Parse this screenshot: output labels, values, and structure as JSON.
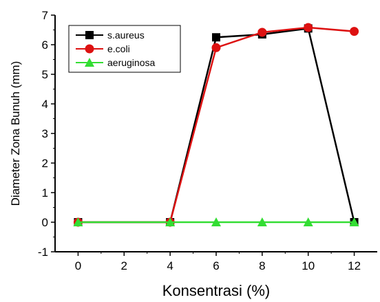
{
  "chart_data": {
    "type": "line",
    "xlabel": "Konsentrasi (%)",
    "ylabel": "Diameter Zona Bunuh (mm)",
    "xlim": [
      -1,
      13
    ],
    "ylim": [
      -1,
      7
    ],
    "xticks": [
      0,
      2,
      4,
      6,
      8,
      10,
      12
    ],
    "yticks": [
      -1,
      0,
      1,
      2,
      3,
      4,
      5,
      6,
      7
    ],
    "x": [
      0,
      4,
      6,
      8,
      10,
      12
    ],
    "grid": false,
    "legend_position": "top-left",
    "series": [
      {
        "name": "s.aureus",
        "color": "#000000",
        "marker": "square",
        "values": [
          0,
          0,
          6.25,
          6.35,
          6.55,
          0
        ]
      },
      {
        "name": "e.coli",
        "color": "#dd1111",
        "marker": "circle",
        "values": [
          0,
          0,
          5.9,
          6.42,
          6.58,
          6.45
        ]
      },
      {
        "name": "aeruginosa",
        "color": "#33dd33",
        "marker": "triangle",
        "values": [
          0,
          0,
          0,
          0,
          0,
          0
        ]
      }
    ]
  }
}
